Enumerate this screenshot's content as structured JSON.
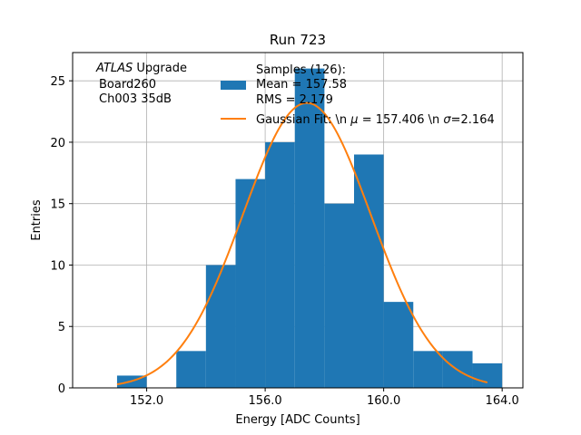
{
  "chart_data": {
    "type": "histogram",
    "title": "Run 723",
    "xlabel": "Energy [ADC Counts]",
    "ylabel": "Entries",
    "xlim": [
      149.5,
      164.7
    ],
    "ylim": [
      0,
      27.3
    ],
    "xticks": [
      152.0,
      156.0,
      160.0,
      164.0
    ],
    "xtick_labels": [
      "152.0",
      "156.0",
      "160.0",
      "164.0"
    ],
    "yticks": [
      0,
      5,
      10,
      15,
      20,
      25
    ],
    "ytick_labels": [
      "0",
      "5",
      "10",
      "15",
      "20",
      "25"
    ],
    "grid": true,
    "bins": [
      {
        "x0": 151,
        "x1": 152,
        "count": 1
      },
      {
        "x0": 152,
        "x1": 153,
        "count": 0
      },
      {
        "x0": 153,
        "x1": 154,
        "count": 3
      },
      {
        "x0": 154,
        "x1": 155,
        "count": 10
      },
      {
        "x0": 155,
        "x1": 156,
        "count": 17
      },
      {
        "x0": 156,
        "x1": 157,
        "count": 20
      },
      {
        "x0": 157,
        "x1": 158,
        "count": 26
      },
      {
        "x0": 158,
        "x1": 159,
        "count": 15
      },
      {
        "x0": 159,
        "x1": 160,
        "count": 19
      },
      {
        "x0": 160,
        "x1": 161,
        "count": 7
      },
      {
        "x0": 161,
        "x1": 162,
        "count": 3
      },
      {
        "x0": 162,
        "x1": 163,
        "count": 3
      },
      {
        "x0": 163,
        "x1": 164,
        "count": 2
      }
    ],
    "fit": {
      "name": "Gaussian Fit: \\n $\\mu$ = 157.406 \\n $\\sigma$=2.164",
      "mu": 157.406,
      "sigma": 2.164,
      "amplitude": 23.2,
      "x_range": [
        151.0,
        163.5
      ]
    },
    "colors": {
      "hist": "#1f77b4",
      "fit": "#ff7f0e",
      "grid": "#b0b0b0"
    },
    "annotation": {
      "atlas": "ATLAS",
      "upgrade": " Upgrade",
      "line2": "Board260",
      "line3": "Ch003 35dB"
    },
    "legend": {
      "placement": "top-right",
      "samples_line1": "Samples (126):",
      "samples_line2": " Mean = 157.58",
      "samples_line3": " RMS = 2.179",
      "fit_label_prefix": "Gaussian Fit: \\n ",
      "fit_mu_symbol": "μ",
      "fit_label_middle": " = 157.406 \\n ",
      "fit_sigma_symbol": "σ",
      "fit_label_suffix": "=2.164"
    }
  }
}
